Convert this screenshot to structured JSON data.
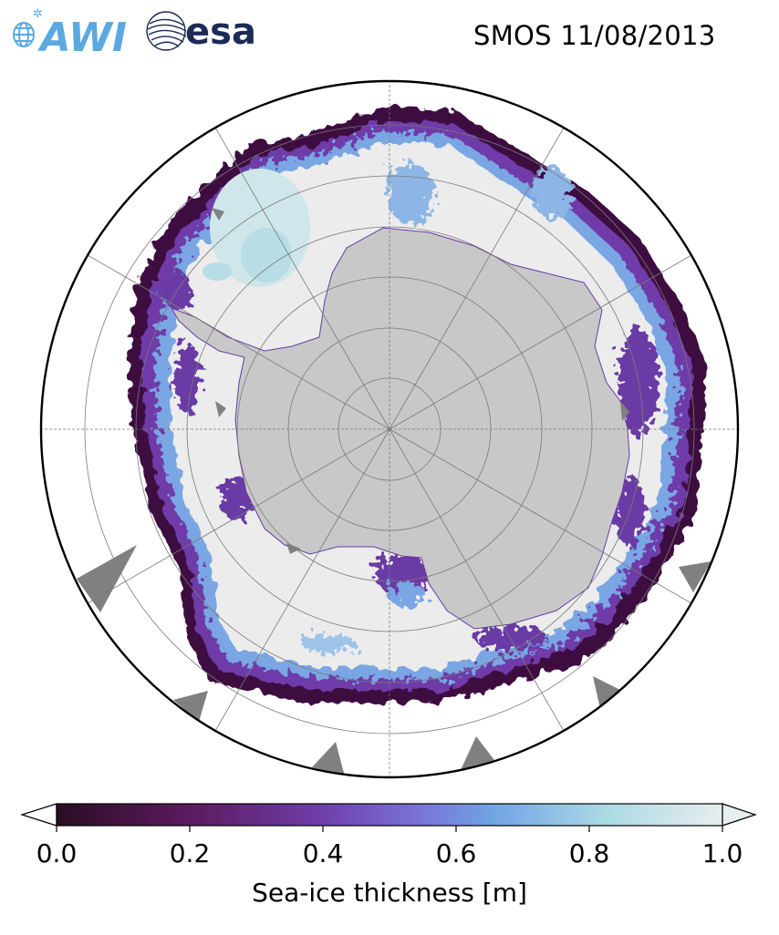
{
  "header": {
    "title": "SMOS 11/08/2013",
    "logos": [
      {
        "name": "AWI",
        "text": "AWI",
        "color": "#5ca9e0"
      },
      {
        "name": "ESA",
        "text": "esa",
        "color": "#1b2b56"
      }
    ]
  },
  "map": {
    "projection": "south-polar-stereographic",
    "colors": {
      "land": "#c8c8c8",
      "thick_ice": "#ececec",
      "ocean": "#ffffff",
      "missing_data": "#808080",
      "graticule": "#7a7a7a",
      "boundary": "#000000"
    }
  },
  "colorbar": {
    "label": "Sea-ice thickness [m]",
    "min": 0.0,
    "max": 1.0,
    "ticks": [
      "0.0",
      "0.2",
      "0.4",
      "0.6",
      "0.8",
      "1.0"
    ],
    "extend": "both",
    "colormap_stops": [
      "#2a0d24",
      "#5c1a5e",
      "#7a55c8",
      "#6fa2e3",
      "#a9d8e5",
      "#e7eeee"
    ]
  }
}
